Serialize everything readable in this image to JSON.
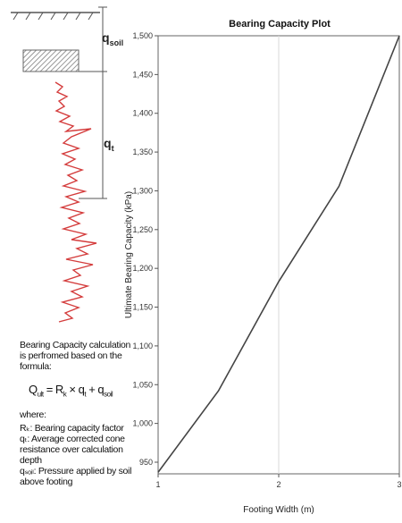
{
  "diagram": {
    "q_soil_main": "q",
    "q_soil_sub": "soil",
    "q_t_main": "q",
    "q_t_sub": "t"
  },
  "explanation": {
    "intro": "Bearing Capacity calculation is perfromed based on the formula:",
    "formula": {
      "q": "Q",
      "q_sub": "ult",
      "eq": " = R",
      "r_sub": "k",
      "times": " × q",
      "qt_sub": "t",
      "plus": " + q",
      "qsoil_sub": "soil"
    },
    "where": "where:",
    "defs": [
      "Rₖ: Bearing capacity factor",
      "qₜ: Average corrected cone resistance over calculation depth",
      "qₛₒᵢₗ: Pressure applied by soil above footing"
    ]
  },
  "chart_data": {
    "type": "line",
    "title": "Bearing Capacity Plot",
    "xlabel": "Footing Width (m)",
    "ylabel": "Ultimate Bearing Capacity (kPa)",
    "xlim": [
      1,
      3
    ],
    "ylim": [
      935,
      1500
    ],
    "x_ticks": [
      1,
      2,
      3
    ],
    "y_ticks": [
      950,
      1000,
      1050,
      1100,
      1150,
      1200,
      1250,
      1300,
      1350,
      1400,
      1450,
      1500
    ],
    "y_tick_labels": [
      "950",
      "1,000",
      "1,050",
      "1,100",
      "1,150",
      "1,200",
      "1,250",
      "1,300",
      "1,350",
      "1,400",
      "1,450",
      "1,500"
    ],
    "grid": "x only",
    "series": [
      {
        "x": [
          1.0,
          1.5,
          2.0,
          2.5,
          3.0
        ],
        "y": [
          937,
          1042,
          1183,
          1306,
          1500
        ]
      }
    ],
    "line_color": "#444444"
  }
}
